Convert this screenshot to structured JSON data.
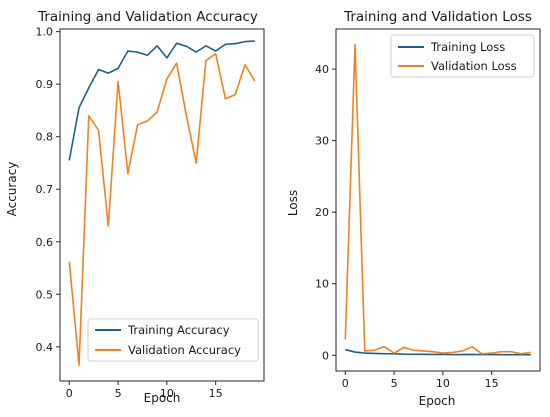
{
  "chart_data": [
    {
      "type": "line",
      "title": "Training and Validation Accuracy",
      "xlabel": "Epoch",
      "ylabel": "Accuracy",
      "xlim": [
        -0.95,
        19.95
      ],
      "ylim": [
        0.335,
        1.005
      ],
      "xticks": [
        0,
        5,
        10,
        15
      ],
      "yticks": [
        0.4,
        0.5,
        0.6,
        0.7,
        0.8,
        0.9,
        1.0
      ],
      "ytick_labels": [
        "0.4",
        "0.5",
        "0.6",
        "0.7",
        "0.8",
        "0.9",
        "1.0"
      ],
      "grid": false,
      "legend_position": "lower-right",
      "x": [
        0,
        1,
        2,
        3,
        4,
        5,
        6,
        7,
        8,
        9,
        10,
        11,
        12,
        13,
        14,
        15,
        16,
        17,
        18,
        19
      ],
      "series": [
        {
          "name": "Training Accuracy",
          "color": "#1f5f8b",
          "values": [
            0.755,
            0.855,
            0.893,
            0.928,
            0.921,
            0.93,
            0.963,
            0.961,
            0.955,
            0.973,
            0.95,
            0.978,
            0.972,
            0.961,
            0.973,
            0.963,
            0.976,
            0.977,
            0.981,
            0.982
          ]
        },
        {
          "name": "Validation Accuracy",
          "color": "#ef8121",
          "values": [
            0.562,
            0.365,
            0.84,
            0.812,
            0.63,
            0.905,
            0.73,
            0.823,
            0.83,
            0.847,
            0.91,
            0.94,
            0.84,
            0.75,
            0.945,
            0.958,
            0.872,
            0.88,
            0.937,
            0.906
          ]
        }
      ]
    },
    {
      "type": "line",
      "title": "Training and Validation Loss",
      "xlabel": "Epoch",
      "ylabel": "Loss",
      "xlim": [
        -0.95,
        19.95
      ],
      "ylim": [
        -2.2,
        45.6
      ],
      "xticks": [
        0,
        5,
        10,
        15
      ],
      "yticks": [
        0,
        10,
        20,
        30,
        40
      ],
      "ytick_labels": [
        "0",
        "10",
        "20",
        "30",
        "40"
      ],
      "grid": false,
      "legend_position": "top-right",
      "x": [
        0,
        1,
        2,
        3,
        4,
        5,
        6,
        7,
        8,
        9,
        10,
        11,
        12,
        13,
        14,
        15,
        16,
        17,
        18,
        19
      ],
      "series": [
        {
          "name": "Training Loss",
          "color": "#1f5f8b",
          "values": [
            0.8,
            0.45,
            0.3,
            0.25,
            0.22,
            0.2,
            0.15,
            0.14,
            0.13,
            0.11,
            0.12,
            0.09,
            0.1,
            0.11,
            0.09,
            0.1,
            0.08,
            0.08,
            0.07,
            0.07
          ]
        },
        {
          "name": "Validation Loss",
          "color": "#ef8121",
          "values": [
            2.2,
            43.4,
            0.6,
            0.7,
            1.2,
            0.3,
            1.1,
            0.7,
            0.6,
            0.5,
            0.3,
            0.4,
            0.6,
            1.2,
            0.2,
            0.3,
            0.5,
            0.5,
            0.2,
            0.4
          ]
        }
      ]
    }
  ]
}
